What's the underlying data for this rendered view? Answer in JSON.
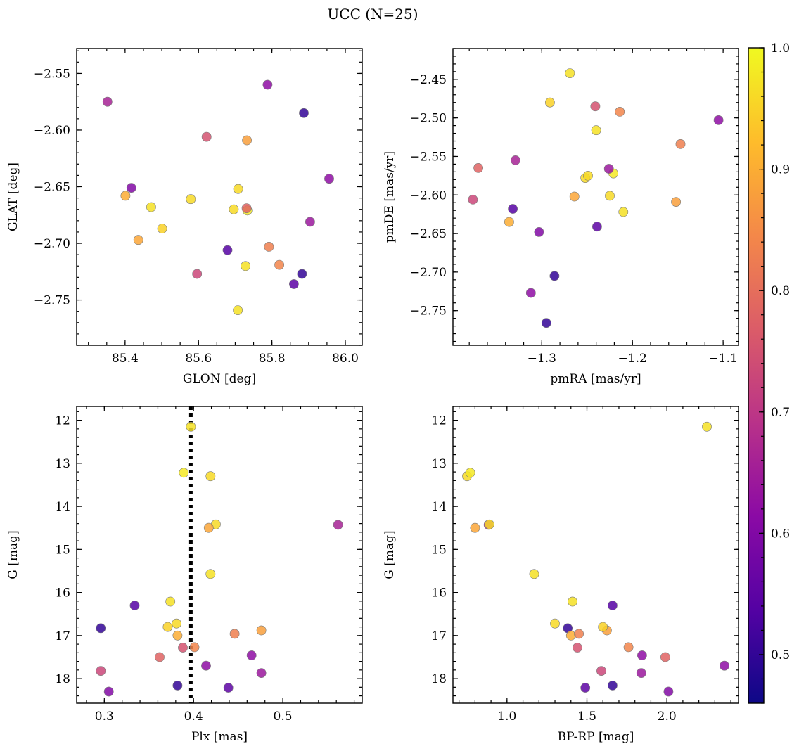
{
  "figure": {
    "title": "UCC (N=25)",
    "colorbar": {
      "min": 0.46,
      "max": 1.0,
      "ticks": [
        0.5,
        0.6,
        0.7,
        0.8,
        0.9,
        1.0
      ],
      "tick_labels": [
        "0.5",
        "0.6",
        "0.7",
        "0.8",
        "0.9",
        "1.0"
      ],
      "colormap": "plasma"
    },
    "vline_style": "dotted black",
    "points": [
      {
        "glon": 85.352,
        "glat": -2.575,
        "pmra": -1.329,
        "pmde": -2.555,
        "plx": 0.562,
        "g": 14.43,
        "bprp": 0.885,
        "p": 0.66
      },
      {
        "glon": 85.788,
        "glat": -2.56,
        "pmra": -1.105,
        "pmde": -2.503,
        "plx": 0.465,
        "g": 17.46,
        "bprp": 1.845,
        "p": 0.62
      },
      {
        "glon": 85.887,
        "glat": -2.585,
        "pmra": -1.286,
        "pmde": -2.705,
        "plx": 0.296,
        "g": 16.83,
        "bprp": 1.38,
        "p": 0.5
      },
      {
        "glon": 85.622,
        "glat": -2.606,
        "pmra": -1.241,
        "pmde": -2.485,
        "plx": 0.388,
        "g": 17.28,
        "bprp": 1.44,
        "p": 0.75
      },
      {
        "glon": 85.732,
        "glat": -2.609,
        "pmra": -1.152,
        "pmde": -2.609,
        "plx": 0.476,
        "g": 16.88,
        "bprp": 1.625,
        "p": 0.88
      },
      {
        "glon": 85.956,
        "glat": -2.643,
        "pmra": -1.312,
        "pmde": -2.727,
        "plx": 0.414,
        "g": 17.7,
        "bprp": 2.36,
        "p": 0.62
      },
      {
        "glon": 85.417,
        "glat": -2.651,
        "pmra": -1.303,
        "pmde": -2.648,
        "plx": 0.305,
        "g": 18.3,
        "bprp": 2.01,
        "p": 0.6
      },
      {
        "glon": 85.401,
        "glat": -2.658,
        "pmra": -1.336,
        "pmde": -2.635,
        "plx": 0.382,
        "g": 17.0,
        "bprp": 1.4,
        "p": 0.9
      },
      {
        "glon": 85.708,
        "glat": -2.652,
        "pmra": -1.252,
        "pmde": -2.578,
        "plx": 0.425,
        "g": 14.42,
        "bprp": 0.89,
        "p": 0.96
      },
      {
        "glon": 85.471,
        "glat": -2.668,
        "pmra": -1.21,
        "pmde": -2.622,
        "plx": 0.419,
        "g": 15.57,
        "bprp": 1.17,
        "p": 0.97
      },
      {
        "glon": 85.579,
        "glat": -2.661,
        "pmra": -1.249,
        "pmde": -2.575,
        "plx": 0.381,
        "g": 16.72,
        "bprp": 1.3,
        "p": 0.96
      },
      {
        "glon": 85.696,
        "glat": -2.67,
        "pmra": -1.225,
        "pmde": -2.601,
        "plx": 0.419,
        "g": 13.3,
        "bprp": 0.75,
        "p": 0.96
      },
      {
        "glon": 85.733,
        "glat": -2.671,
        "pmra": -1.221,
        "pmde": -2.572,
        "plx": 0.389,
        "g": 13.22,
        "bprp": 0.77,
        "p": 0.98
      },
      {
        "glon": 85.731,
        "glat": -2.669,
        "pmra": -1.37,
        "pmde": -2.565,
        "plx": 0.362,
        "g": 17.5,
        "bprp": 1.99,
        "p": 0.78
      },
      {
        "glon": 85.904,
        "glat": -2.681,
        "pmra": -1.226,
        "pmde": -2.566,
        "plx": 0.476,
        "g": 17.87,
        "bprp": 1.84,
        "p": 0.64
      },
      {
        "glon": 85.501,
        "glat": -2.687,
        "pmra": -1.291,
        "pmde": -2.48,
        "plx": 0.371,
        "g": 16.8,
        "bprp": 1.6,
        "p": 0.95
      },
      {
        "glon": 85.436,
        "glat": -2.697,
        "pmra": -1.264,
        "pmde": -2.602,
        "plx": 0.417,
        "g": 14.5,
        "bprp": 0.8,
        "p": 0.89
      },
      {
        "glon": 85.679,
        "glat": -2.706,
        "pmra": -1.332,
        "pmde": -2.618,
        "plx": 0.334,
        "g": 16.3,
        "bprp": 1.66,
        "p": 0.54
      },
      {
        "glon": 85.792,
        "glat": -2.703,
        "pmra": -1.147,
        "pmde": -2.534,
        "plx": 0.446,
        "g": 16.96,
        "bprp": 1.45,
        "p": 0.83
      },
      {
        "glon": 85.728,
        "glat": -2.72,
        "pmra": -1.24,
        "pmde": -2.516,
        "plx": 0.374,
        "g": 16.21,
        "bprp": 1.41,
        "p": 0.97
      },
      {
        "glon": 85.82,
        "glat": -2.719,
        "pmra": -1.214,
        "pmde": -2.492,
        "plx": 0.401,
        "g": 17.27,
        "bprp": 1.76,
        "p": 0.84
      },
      {
        "glon": 85.596,
        "glat": -2.727,
        "pmra": -1.376,
        "pmde": -2.606,
        "plx": 0.296,
        "g": 17.82,
        "bprp": 1.59,
        "p": 0.73
      },
      {
        "glon": 85.882,
        "glat": -2.727,
        "pmra": -1.295,
        "pmde": -2.766,
        "plx": 0.382,
        "g": 18.16,
        "bprp": 1.66,
        "p": 0.5
      },
      {
        "glon": 85.86,
        "glat": -2.736,
        "pmra": -1.239,
        "pmde": -2.641,
        "plx": 0.439,
        "g": 18.21,
        "bprp": 1.49,
        "p": 0.55
      },
      {
        "glon": 85.707,
        "glat": -2.759,
        "pmra": -1.269,
        "pmde": -2.442,
        "plx": 0.397,
        "g": 12.15,
        "bprp": 2.25,
        "p": 0.97
      }
    ]
  },
  "chart_data": [
    {
      "type": "scatter",
      "title": "",
      "xlabel": "GLON [deg]",
      "ylabel": "GLAT [deg]",
      "x_field": "glon",
      "y_field": "glat",
      "xlim": [
        85.268,
        86.046
      ],
      "ylim": [
        -2.79,
        -2.528
      ],
      "y_inverted": false,
      "xticks": [
        85.4,
        85.6,
        85.8,
        86.0
      ],
      "xtick_labels": [
        "85.4",
        "85.6",
        "85.8",
        "86.0"
      ],
      "xminor_step": 0.05,
      "yticks": [
        -2.55,
        -2.6,
        -2.65,
        -2.7,
        -2.75
      ],
      "ytick_labels": [
        "−2.55",
        "−2.60",
        "−2.65",
        "−2.70",
        "−2.75"
      ],
      "yminor_step": 0.01,
      "grid": false
    },
    {
      "type": "scatter",
      "title": "",
      "xlabel": "pmRA [mas/yr]",
      "ylabel": "pmDE [mas/yr]",
      "x_field": "pmra",
      "y_field": "pmde",
      "xlim": [
        -1.398,
        -1.083
      ],
      "ylim": [
        -2.795,
        -2.41
      ],
      "y_inverted": false,
      "xticks": [
        -1.3,
        -1.2,
        -1.1
      ],
      "xtick_labels": [
        "−1.3",
        "−1.2",
        "−1.1"
      ],
      "xminor_step": 0.02,
      "yticks": [
        -2.45,
        -2.5,
        -2.55,
        -2.6,
        -2.65,
        -2.7,
        -2.75
      ],
      "ytick_labels": [
        "−2.45",
        "−2.50",
        "−2.55",
        "−2.60",
        "−2.65",
        "−2.70",
        "−2.75"
      ],
      "yminor_step": 0.01,
      "grid": false
    },
    {
      "type": "scatter",
      "title": "",
      "xlabel": "Plx [mas]",
      "ylabel": "G [mag]",
      "x_field": "plx",
      "y_field": "g",
      "xlim": [
        0.269,
        0.589
      ],
      "ylim": [
        11.68,
        18.57
      ],
      "y_inverted": true,
      "xticks": [
        0.3,
        0.4,
        0.5
      ],
      "xtick_labels": [
        "0.3",
        "0.4",
        "0.5"
      ],
      "xminor_step": 0.02,
      "yticks": [
        12,
        13,
        14,
        15,
        16,
        17,
        18
      ],
      "ytick_labels": [
        "12",
        "13",
        "14",
        "15",
        "16",
        "17",
        "18"
      ],
      "yminor_step": 0.2,
      "vline": 0.397,
      "grid": false
    },
    {
      "type": "scatter",
      "title": "",
      "xlabel": "BP-RP [mag]",
      "ylabel": "G [mag]",
      "x_field": "bprp",
      "y_field": "g",
      "xlim": [
        0.662,
        2.448
      ],
      "ylim": [
        11.68,
        18.57
      ],
      "y_inverted": true,
      "xticks": [
        1.0,
        1.5,
        2.0
      ],
      "xtick_labels": [
        "1.0",
        "1.5",
        "2.0"
      ],
      "xminor_step": 0.1,
      "yticks": [
        12,
        13,
        14,
        15,
        16,
        17,
        18
      ],
      "ytick_labels": [
        "12",
        "13",
        "14",
        "15",
        "16",
        "17",
        "18"
      ],
      "yminor_step": 0.2,
      "grid": false
    }
  ]
}
